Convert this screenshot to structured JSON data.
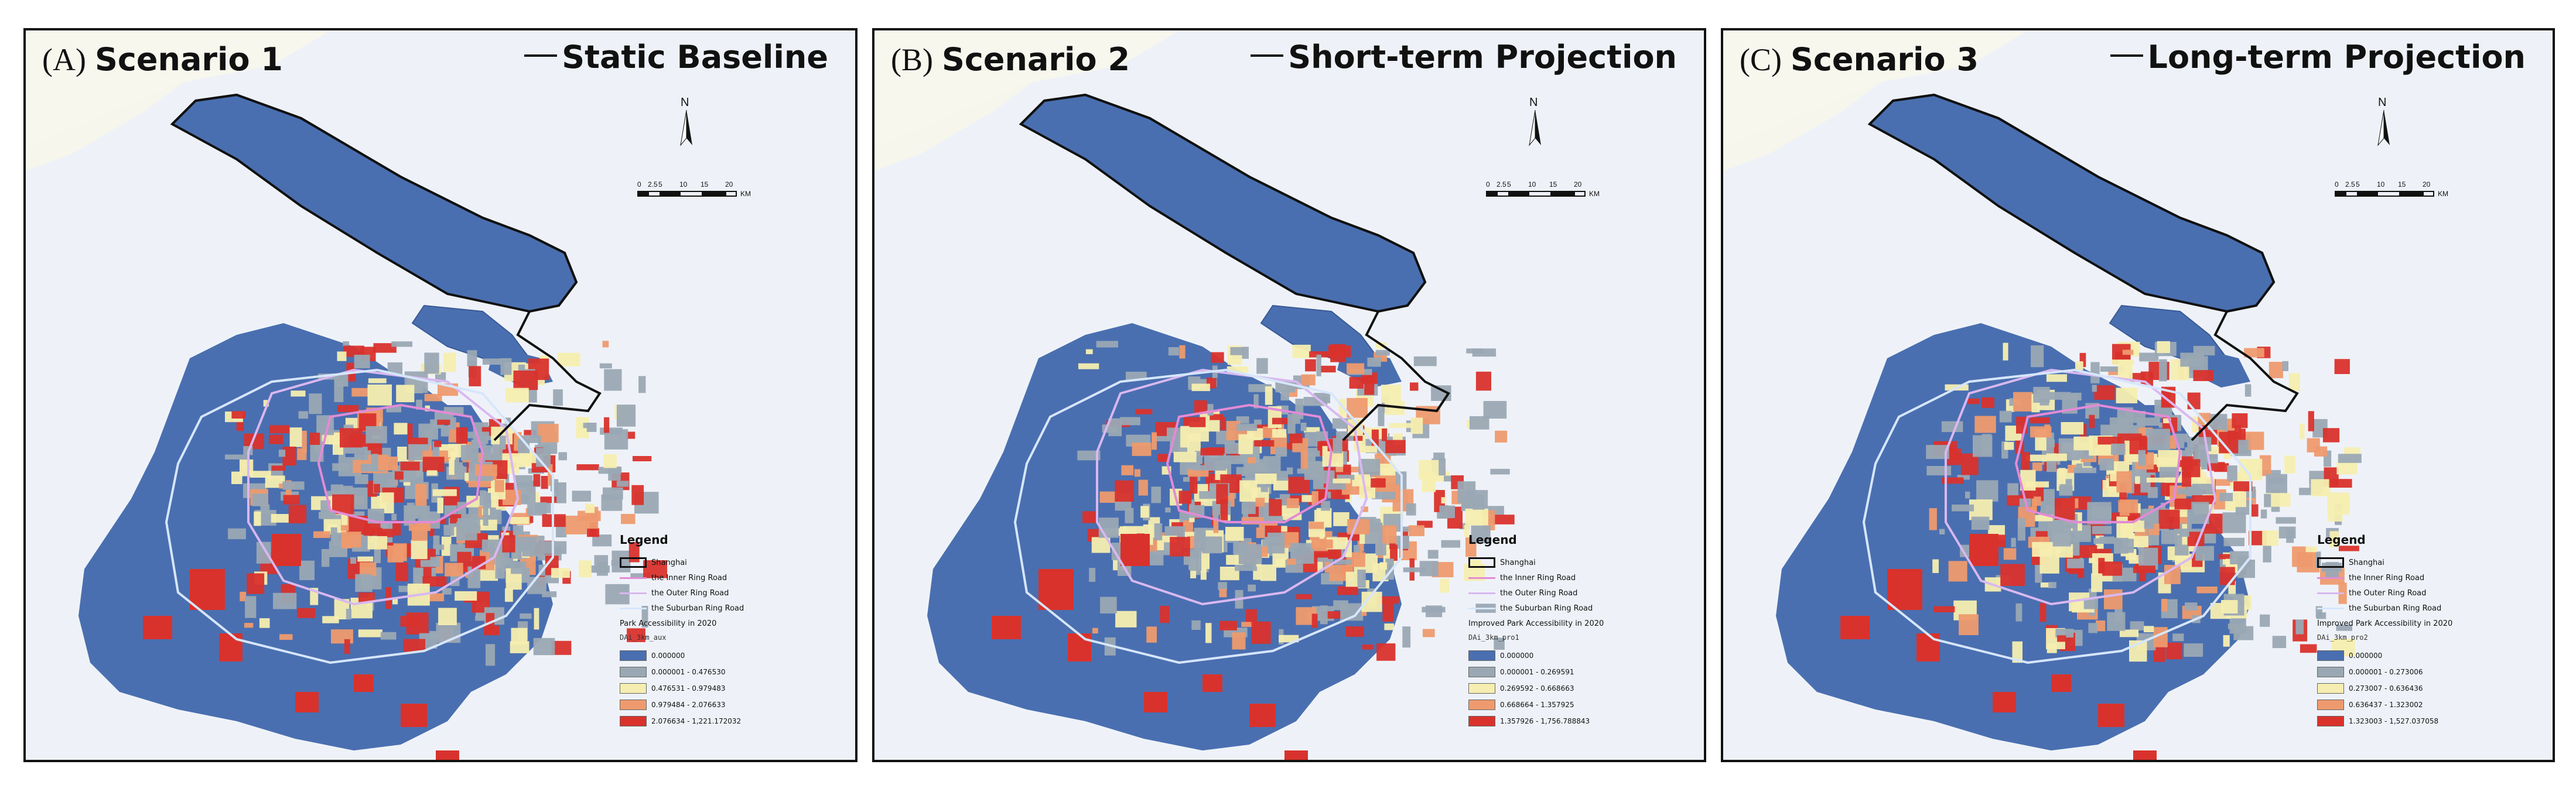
{
  "panels": [
    {
      "letter": "(A)",
      "scenario": "Scenario 1",
      "subtitle": "Static Baseline",
      "legend_title": "Legend",
      "legend_items": [
        "Shanghai",
        "the Inner Ring Road",
        "the Outer Ring Road",
        "the Suburban Ring Road"
      ],
      "measure": "Park Accessibility in 2020",
      "field": "DAi_3km_aux",
      "classes": [
        "0.000000",
        "0.000001 - 0.476530",
        "0.476531 - 0.979483",
        "0.979484 - 2.076633",
        "2.076634 - 1,221.172032"
      ]
    },
    {
      "letter": "(B)",
      "scenario": "Scenario 2",
      "subtitle": "Short-term Projection",
      "legend_title": "Legend",
      "legend_items": [
        "Shanghai",
        "the Inner Ring Road",
        "the Outer Ring Road",
        "the Suburban Ring Road"
      ],
      "measure": "Improved Park Accessibility in 2020",
      "field": "DAi_3km_pro1",
      "classes": [
        "0.000000",
        "0.000001 - 0.269591",
        "0.269592 - 0.668663",
        "0.668664 - 1.357925",
        "1.357926 - 1,756.788843"
      ]
    },
    {
      "letter": "(C)",
      "scenario": "Scenario 3",
      "subtitle": "Long-term Projection",
      "legend_title": "Legend",
      "legend_items": [
        "Shanghai",
        "the Inner Ring Road",
        "the Outer Ring Road",
        "the Suburban Ring Road"
      ],
      "measure": "Improved Park Accessibility in 2020",
      "field": "DAi_3km_pro2",
      "classes": [
        "0.000000",
        "0.000001 - 0.273006",
        "0.273007 - 0.636436",
        "0.636437 - 1.323002",
        "1.323003 - 1,527.037058"
      ]
    }
  ],
  "north_label": "N",
  "scale": {
    "ticks": [
      "0",
      "2.5",
      "5",
      "10",
      "15",
      "20"
    ],
    "unit": "KM"
  },
  "colors": {
    "class_colors": [
      "#4a6fb0",
      "#9aa8b4",
      "#f6eeb0",
      "#ee9a6e",
      "#d9322c"
    ],
    "land": "#4a6fb0",
    "water": "#eef2f8",
    "inner_ring": "#e38bd6",
    "outer_ring": "#d9b8f0",
    "suburban_ring": "#d6e6fb",
    "boundary": "#111111"
  },
  "icons": {
    "north": "north-arrow-icon"
  }
}
